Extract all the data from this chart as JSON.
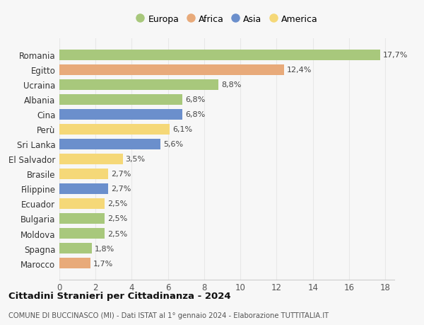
{
  "countries": [
    "Romania",
    "Egitto",
    "Ucraina",
    "Albania",
    "Cina",
    "Perù",
    "Sri Lanka",
    "El Salvador",
    "Brasile",
    "Filippine",
    "Ecuador",
    "Bulgaria",
    "Moldova",
    "Spagna",
    "Marocco"
  ],
  "values": [
    17.7,
    12.4,
    8.8,
    6.8,
    6.8,
    6.1,
    5.6,
    3.5,
    2.7,
    2.7,
    2.5,
    2.5,
    2.5,
    1.8,
    1.7
  ],
  "labels": [
    "17,7%",
    "12,4%",
    "8,8%",
    "6,8%",
    "6,8%",
    "6,1%",
    "5,6%",
    "3,5%",
    "2,7%",
    "2,7%",
    "2,5%",
    "2,5%",
    "2,5%",
    "1,8%",
    "1,7%"
  ],
  "continents": [
    "Europa",
    "Africa",
    "Europa",
    "Europa",
    "Asia",
    "America",
    "Asia",
    "America",
    "America",
    "Asia",
    "America",
    "Europa",
    "Europa",
    "Europa",
    "Africa"
  ],
  "colors": {
    "Europa": "#a8c87c",
    "Africa": "#e8aa7a",
    "Asia": "#6b8fcc",
    "America": "#f5d878"
  },
  "legend_order": [
    "Europa",
    "Africa",
    "Asia",
    "America"
  ],
  "xlim": [
    0,
    18.5
  ],
  "xticks": [
    0,
    2,
    4,
    6,
    8,
    10,
    12,
    14,
    16,
    18
  ],
  "title": "Cittadini Stranieri per Cittadinanza - 2024",
  "subtitle": "COMUNE DI BUCCINASCO (MI) - Dati ISTAT al 1° gennaio 2024 - Elaborazione TUTTITALIA.IT",
  "background_color": "#f7f7f7",
  "grid_color": "#e0e0e0",
  "bar_height": 0.72
}
